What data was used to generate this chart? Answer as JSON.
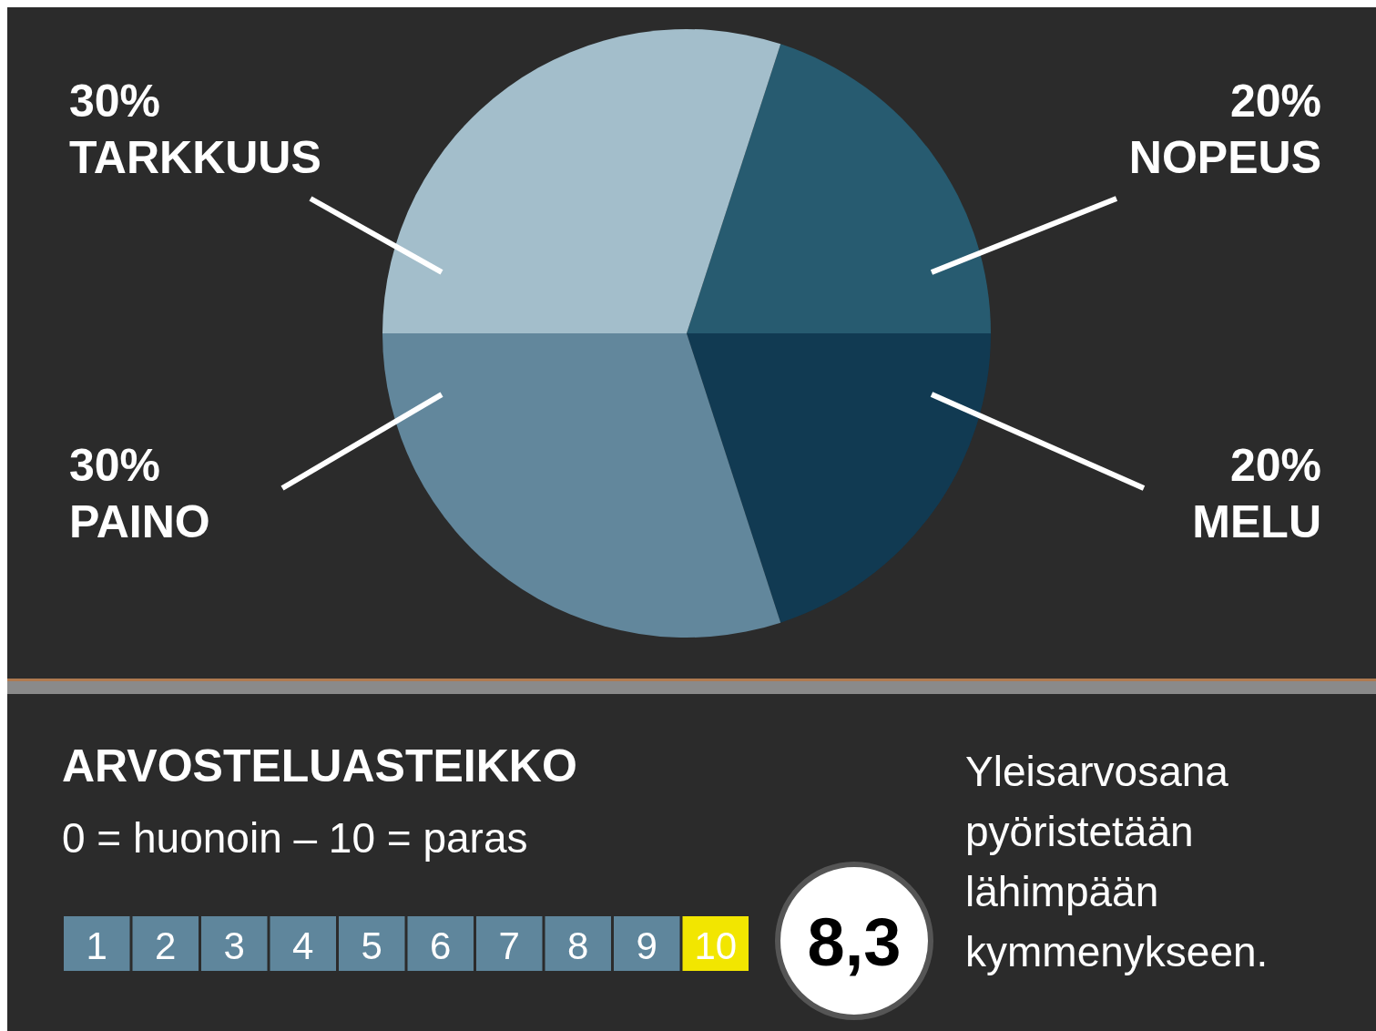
{
  "chart_data": [
    {
      "type": "pie",
      "categories": [
        "NOPEUS",
        "MELU",
        "PAINO",
        "TARKKUUS"
      ],
      "values": [
        20,
        20,
        30,
        30
      ],
      "value_labels": [
        "20%",
        "20%",
        "30%",
        "30%"
      ],
      "colors": [
        "#275b70",
        "#113a52",
        "#62879c",
        "#a3becb"
      ]
    },
    {
      "type": "heatmap",
      "title": "ARVOSTELUASTEIKKO",
      "subtitle": "0 = huonoin – 10 = paras",
      "categories": [
        null,
        null,
        null,
        null,
        null,
        null,
        null,
        null,
        null,
        null
      ],
      "y_categories": [
        null
      ],
      "cells": [
        [
          1,
          2,
          3,
          4,
          5,
          6,
          7,
          8,
          9,
          10
        ]
      ],
      "cell_labels": [
        [
          "1",
          "2",
          "3",
          "4",
          "5",
          "6",
          "7",
          "8",
          "9",
          "10"
        ]
      ],
      "colors": [
        "#5f869c",
        "#5f869c",
        "#5f869c",
        "#5f869c",
        "#5f869c",
        "#5f869c",
        "#5f869c",
        "#5f869c",
        "#5f869c",
        "#f2e600"
      ],
      "annotations": [
        "8,3",
        "Yleisarvosana pyöristetään lähimpään kymmenykseen."
      ]
    }
  ]
}
